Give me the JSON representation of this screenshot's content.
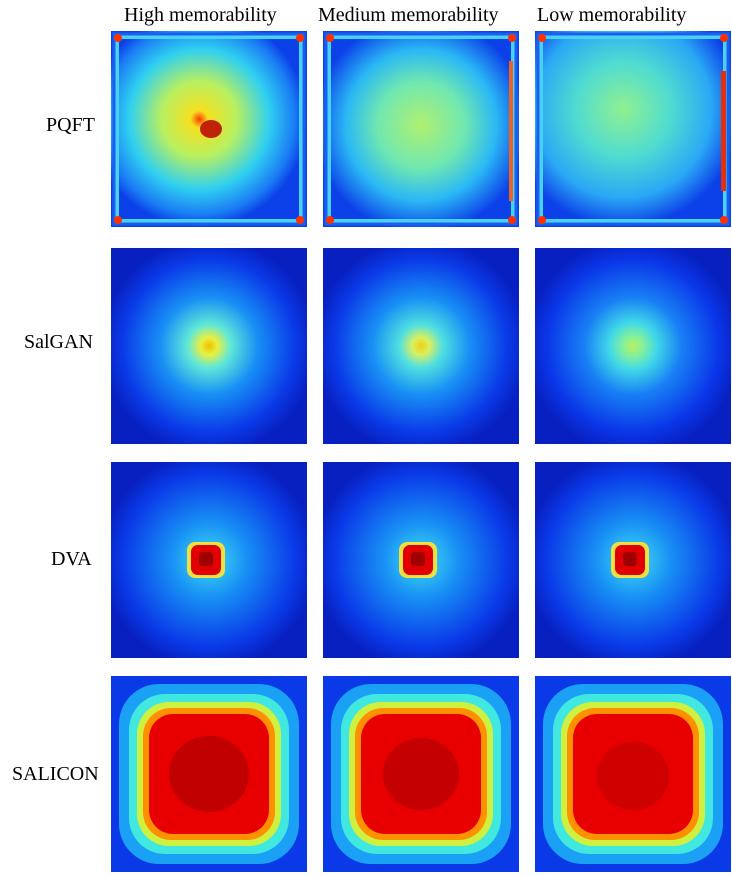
{
  "columns": [
    "High memorability",
    "Medium memorability",
    "Low memorability"
  ],
  "rows": [
    "PQFT",
    "SalGAN",
    "DVA",
    "SALICON"
  ],
  "colormap": [
    "#00008f",
    "#0000ff",
    "#00ffff",
    "#ffff00",
    "#ff0000",
    "#800000"
  ]
}
